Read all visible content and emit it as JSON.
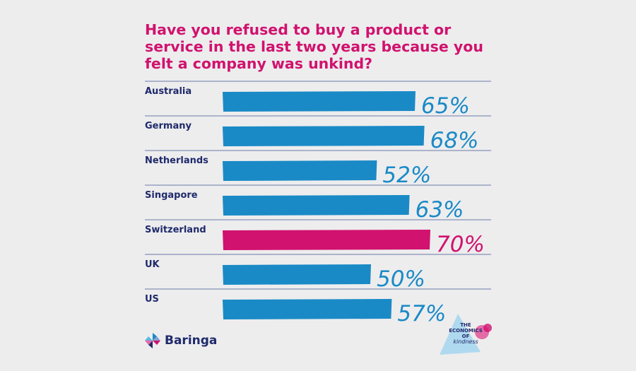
{
  "title": "Have you refused to buy a product or service in the last two years because you felt a company was unkind?",
  "chart_data": {
    "type": "bar",
    "orientation": "horizontal",
    "categories": [
      "Australia",
      "Germany",
      "Netherlands",
      "Singapore",
      "Switzerland",
      "UK",
      "US"
    ],
    "values": [
      65,
      68,
      52,
      63,
      70,
      50,
      57
    ],
    "value_labels": [
      "65%",
      "68%",
      "52%",
      "63%",
      "70%",
      "50%",
      "57%"
    ],
    "unit": "%",
    "highlight": "Switzerland",
    "xlim": [
      0,
      100
    ],
    "grid": false,
    "colors": {
      "bar": "#1a8ac6",
      "highlight": "#d1126e",
      "text": "#1f2a6b",
      "rule": "#6a79a8"
    }
  },
  "branding": {
    "logo_text": "Baringa",
    "logo_icon": "baringa-pinwheel-icon",
    "badge_line1": "THE",
    "badge_line2": "ECONOMICS",
    "badge_line3": "OF",
    "badge_line4": "kindness"
  }
}
